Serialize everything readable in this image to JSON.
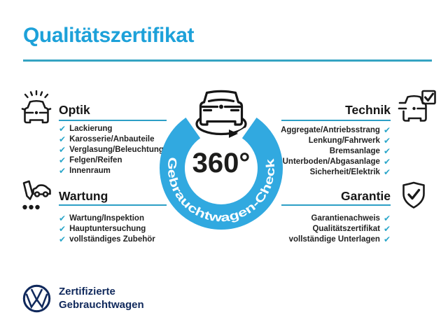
{
  "ui": {
    "check_glyph": "✔"
  },
  "header": {
    "title": "Qualitätszertifikat"
  },
  "center_badge": {
    "degree_label": "360°",
    "ring_label": "Gebrauchtwagen-Check",
    "icon": "car-front-rotate-icon"
  },
  "sections": {
    "optik": {
      "title": "Optik",
      "icon": "car-headlights-icon",
      "items": [
        "Lackierung",
        "Karosserie/Anbauteile",
        "Verglasung/Beleuchtung",
        "Felgen/Reifen",
        "Innenraum"
      ]
    },
    "technik": {
      "title": "Technik",
      "icon": "car-checkbox-icon",
      "items": [
        "Aggregate/Antriebsstrang",
        "Lenkung/Fahrwerk",
        "Bremsanlage",
        "Unterboden/Abgasanlage",
        "Sicherheit/Elektrik"
      ]
    },
    "wartung": {
      "title": "Wartung",
      "icon": "pencil-car-checklist-icon",
      "items": [
        "Wartung/Inspektion",
        "Hauptuntersuchung",
        "vollständiges Zubehör"
      ]
    },
    "garantie": {
      "title": "Garantie",
      "icon": "shield-check-icon",
      "items": [
        "Garantienachweis",
        "Qualitätszertifikat",
        "vollständige Unterlagen"
      ]
    }
  },
  "footer": {
    "logo": "vw-logo",
    "brand_line1": "Zertifizierte",
    "brand_line2": "Gebrauchtwagen"
  },
  "colors": {
    "accent_blue": "#1da1d9",
    "ring_blue": "#31a9e0",
    "rule_teal": "#2d9fc6",
    "check_teal": "#2aa6c9",
    "navy": "#10295c",
    "ink": "#1a1a1a"
  }
}
